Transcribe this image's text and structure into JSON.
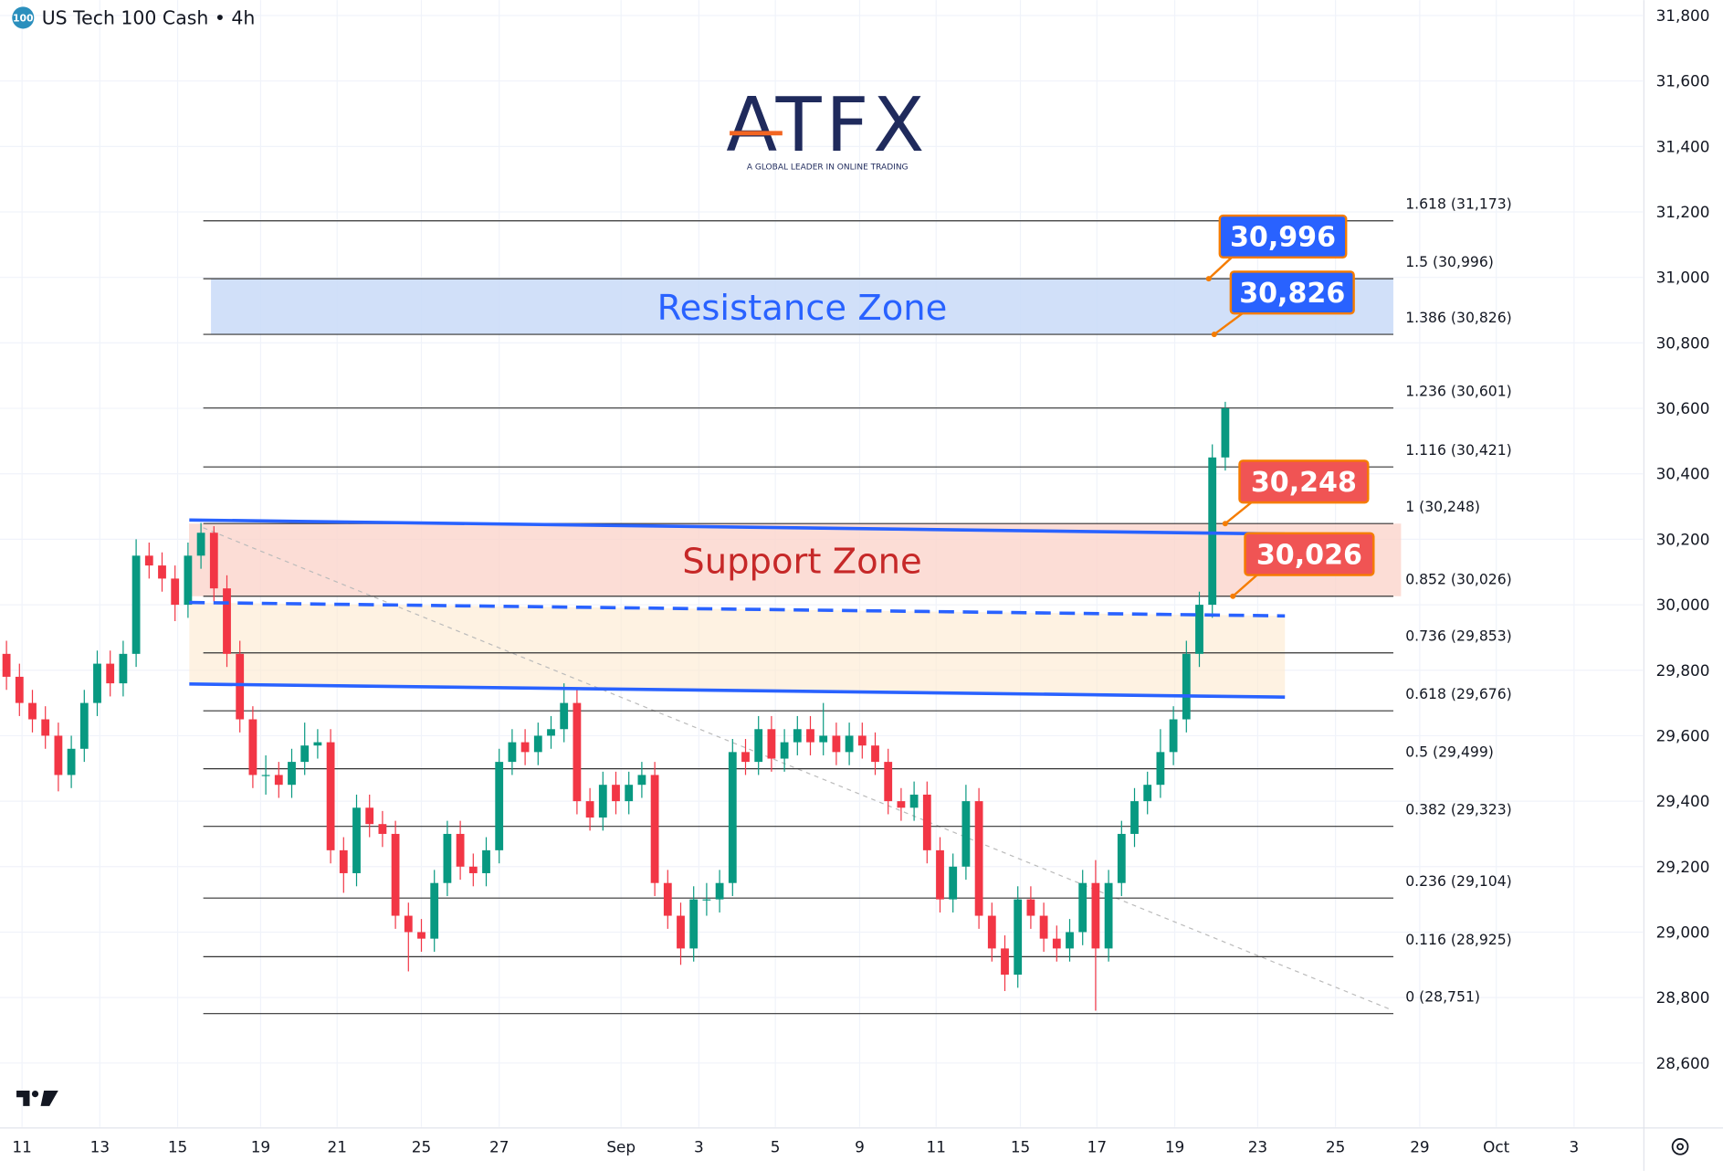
{
  "chart_data": {
    "type": "candlestick",
    "title": "US Tech 100 Cash • 4h",
    "symbol_badge": "100",
    "logo": "ATFX",
    "logo_tagline": "A GLOBAL LEADER IN ONLINE TRADING",
    "up_color": "#089981",
    "down_color": "#f23645",
    "grid": true,
    "ylim": [
      28405,
      31847
    ],
    "yticks": [
      {
        "value": 28600,
        "label": "28,600"
      },
      {
        "value": 28800,
        "label": "28,800"
      },
      {
        "value": 29000,
        "label": "29,000"
      },
      {
        "value": 29200,
        "label": "29,200"
      },
      {
        "value": 29400,
        "label": "29,400"
      },
      {
        "value": 29600,
        "label": "29,600"
      },
      {
        "value": 29800,
        "label": "29,800"
      },
      {
        "value": 30000,
        "label": "30,000"
      },
      {
        "value": 30200,
        "label": "30,200"
      },
      {
        "value": 30400,
        "label": "30,400"
      },
      {
        "value": 30600,
        "label": "30,600"
      },
      {
        "value": 30800,
        "label": "30,800"
      },
      {
        "value": 31000,
        "label": "31,000"
      },
      {
        "value": 31200,
        "label": "31,200"
      },
      {
        "value": 31400,
        "label": "31,400"
      },
      {
        "value": 31600,
        "label": "31,600"
      },
      {
        "value": 31800,
        "label": "31,800"
      }
    ],
    "xlim": [
      -0.5,
      126.2
    ],
    "xticks": [
      {
        "value": 1.2,
        "label": "11"
      },
      {
        "value": 7.2,
        "label": "13"
      },
      {
        "value": 13.2,
        "label": "15"
      },
      {
        "value": 19.6,
        "label": "19"
      },
      {
        "value": 25.5,
        "label": "21"
      },
      {
        "value": 32.0,
        "label": "25"
      },
      {
        "value": 38.0,
        "label": "27"
      },
      {
        "value": 47.4,
        "label": "Sep"
      },
      {
        "value": 53.4,
        "label": "3"
      },
      {
        "value": 59.3,
        "label": "5"
      },
      {
        "value": 65.8,
        "label": "9"
      },
      {
        "value": 71.7,
        "label": "11"
      },
      {
        "value": 78.2,
        "label": "15"
      },
      {
        "value": 84.1,
        "label": "17"
      },
      {
        "value": 90.1,
        "label": "19"
      },
      {
        "value": 96.5,
        "label": "23"
      },
      {
        "value": 102.5,
        "label": "25"
      },
      {
        "value": 109.0,
        "label": "29"
      },
      {
        "value": 114.9,
        "label": "Oct"
      },
      {
        "value": 120.9,
        "label": "3"
      }
    ],
    "open": [
      29850,
      29780,
      29700,
      29650,
      29600,
      29480,
      29560,
      29700,
      29820,
      29760,
      29850,
      30150,
      30120,
      30080,
      30000,
      30150,
      30220,
      30050,
      29850,
      29650,
      29480,
      29480,
      29450,
      29520,
      29570,
      29580,
      29250,
      29180,
      29380,
      29330,
      29300,
      29050,
      29000,
      28980,
      29150,
      29300,
      29200,
      29180,
      29250,
      29520,
      29580,
      29550,
      29600,
      29620,
      29700,
      29400,
      29350,
      29450,
      29400,
      29450,
      29480,
      29150,
      29050,
      28950,
      29100,
      29100,
      29150,
      29550,
      29520,
      29620,
      29530,
      29580,
      29620,
      29580,
      29600,
      29550,
      29600,
      29570,
      29520,
      29400,
      29380,
      29420,
      29250,
      29100,
      29200,
      29400,
      29050,
      28950,
      28870,
      29100,
      29050,
      28980,
      28950,
      29000,
      29150,
      28950,
      29150,
      29300,
      29400,
      29450,
      29550,
      29650,
      29850,
      30000,
      30450
    ],
    "high": [
      29890,
      29820,
      29740,
      29690,
      29640,
      29600,
      29740,
      29860,
      29860,
      29890,
      30200,
      30190,
      30160,
      30120,
      30190,
      30250,
      30240,
      30090,
      29890,
      29690,
      29540,
      29520,
      29560,
      29640,
      29620,
      29620,
      29290,
      29420,
      29420,
      29370,
      29340,
      29090,
      29040,
      29190,
      29340,
      29340,
      29240,
      29290,
      29560,
      29620,
      29620,
      29640,
      29660,
      29760,
      29740,
      29440,
      29490,
      29490,
      29490,
      29520,
      29520,
      29190,
      29090,
      29140,
      29150,
      29190,
      29590,
      29590,
      29660,
      29660,
      29620,
      29660,
      29660,
      29700,
      29640,
      29640,
      29640,
      29610,
      29560,
      29440,
      29460,
      29460,
      29290,
      29240,
      29450,
      29440,
      29090,
      28990,
      29140,
      29140,
      29090,
      29020,
      29040,
      29190,
      29220,
      29190,
      29340,
      29440,
      29490,
      29620,
      29690,
      29890,
      30040,
      30490,
      30620
    ],
    "low": [
      29740,
      29660,
      29610,
      29560,
      29430,
      29440,
      29520,
      29660,
      29720,
      29720,
      29810,
      30080,
      30040,
      29950,
      29960,
      30110,
      30010,
      29810,
      29610,
      29440,
      29420,
      29410,
      29410,
      29480,
      29530,
      29210,
      29120,
      29140,
      29290,
      29260,
      29010,
      28880,
      28940,
      28940,
      29110,
      29160,
      29140,
      29140,
      29210,
      29480,
      29510,
      29510,
      29560,
      29580,
      29360,
      29310,
      29310,
      29360,
      29360,
      29410,
      29110,
      29010,
      28900,
      28910,
      29050,
      29060,
      29110,
      29480,
      29480,
      29490,
      29490,
      29540,
      29540,
      29540,
      29510,
      29510,
      29530,
      29480,
      29360,
      29340,
      29340,
      29210,
      29060,
      29060,
      29160,
      29010,
      28910,
      28820,
      28830,
      29010,
      28940,
      28910,
      28910,
      28960,
      28760,
      28910,
      29110,
      29260,
      29360,
      29410,
      29510,
      29610,
      29810,
      29960,
      30410
    ],
    "close": [
      29780,
      29700,
      29650,
      29600,
      29480,
      29560,
      29700,
      29820,
      29760,
      29850,
      30150,
      30120,
      30080,
      30000,
      30150,
      30220,
      30050,
      29850,
      29650,
      29480,
      29480,
      29450,
      29520,
      29570,
      29580,
      29250,
      29180,
      29380,
      29330,
      29300,
      29050,
      29000,
      28980,
      29150,
      29300,
      29200,
      29180,
      29250,
      29520,
      29580,
      29550,
      29600,
      29620,
      29700,
      29400,
      29350,
      29450,
      29400,
      29450,
      29480,
      29150,
      29050,
      28950,
      29100,
      29100,
      29150,
      29550,
      29520,
      29620,
      29530,
      29580,
      29620,
      29580,
      29600,
      29550,
      29600,
      29570,
      29520,
      29400,
      29380,
      29420,
      29250,
      29100,
      29200,
      29400,
      29050,
      28950,
      28870,
      29100,
      29050,
      28980,
      28950,
      29000,
      29150,
      28950,
      29150,
      29300,
      29400,
      29450,
      29550,
      29650,
      29850,
      30000,
      30450,
      30600
    ],
    "fib_levels": [
      {
        "label": "1.618 (31,173)",
        "value": 31173
      },
      {
        "label": "1.5 (30,996)",
        "value": 30996
      },
      {
        "label": "1.386 (30,826)",
        "value": 30826
      },
      {
        "label": "1.236 (30,601)",
        "value": 30601
      },
      {
        "label": "1.116 (30,421)",
        "value": 30421
      },
      {
        "label": "1 (30,248)",
        "value": 30248
      },
      {
        "label": "0.852 (30,026)",
        "value": 30026
      },
      {
        "label": "0.736 (29,853)",
        "value": 29853
      },
      {
        "label": "0.618 (29,676)",
        "value": 29676
      },
      {
        "label": "0.5 (29,499)",
        "value": 29499
      },
      {
        "label": "0.382 (29,323)",
        "value": 29323
      },
      {
        "label": "0.236 (29,104)",
        "value": 29104
      },
      {
        "label": "0.116 (28,925)",
        "value": 28925
      },
      {
        "label": "0 (28,751)",
        "value": 28751
      }
    ],
    "zones": [
      {
        "label": "Resistance Zone",
        "from": 30826,
        "to": 30996,
        "color": "#2962ff"
      },
      {
        "label": "Support Zone",
        "from": 30026,
        "to": 30248,
        "color": "#c62828"
      }
    ],
    "channel": {
      "x": [
        14.1,
        98.6
      ],
      "upper": [
        30259,
        30216
      ],
      "middle": [
        30007,
        29966
      ],
      "lower": [
        29758,
        29718
      ],
      "color": "#2962ff"
    },
    "callouts": [
      {
        "label": "30,996",
        "value": 30996,
        "color": "#2962ff"
      },
      {
        "label": "30,826",
        "value": 30826,
        "color": "#2962ff"
      },
      {
        "label": "30,248",
        "value": 30248,
        "color": "#f05454"
      },
      {
        "label": "30,026",
        "value": 30026,
        "color": "#f05454"
      }
    ]
  }
}
